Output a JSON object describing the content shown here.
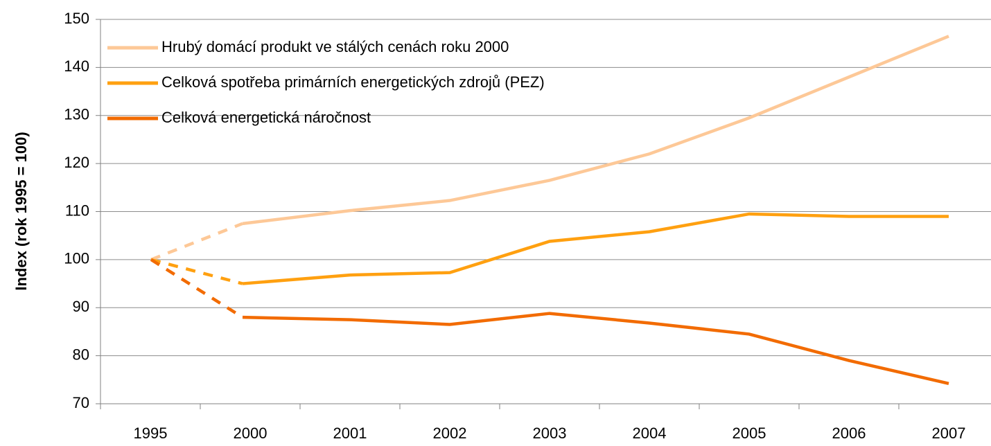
{
  "chart_data": {
    "type": "line",
    "y_label": "Index (rok 1995 = 100)",
    "categories": [
      "1995",
      "2000",
      "2001",
      "2002",
      "2003",
      "2004",
      "2005",
      "2006",
      "2007"
    ],
    "series": [
      {
        "name": "Hrubý domácí produkt ve stálých cenách roku 2000",
        "color": "#fdc897",
        "values": [
          100,
          107.5,
          110.2,
          112.3,
          116.5,
          122,
          129.5,
          138,
          146.5
        ]
      },
      {
        "name": "Celková spotřeba primárních energetických zdrojů (PEZ)",
        "color": "#ffa010",
        "values": [
          100,
          95,
          96.8,
          97.3,
          103.8,
          105.8,
          109.5,
          109,
          109
        ]
      },
      {
        "name": "Celková energetická náročnost",
        "color": "#f26b00",
        "values": [
          100,
          88,
          87.5,
          86.5,
          88.8,
          86.8,
          84.5,
          79,
          74.2
        ]
      }
    ],
    "ylim": [
      70,
      150
    ],
    "yticks": [
      70,
      80,
      90,
      100,
      110,
      120,
      130,
      140,
      150
    ],
    "grid": true,
    "legend": "top-left"
  }
}
